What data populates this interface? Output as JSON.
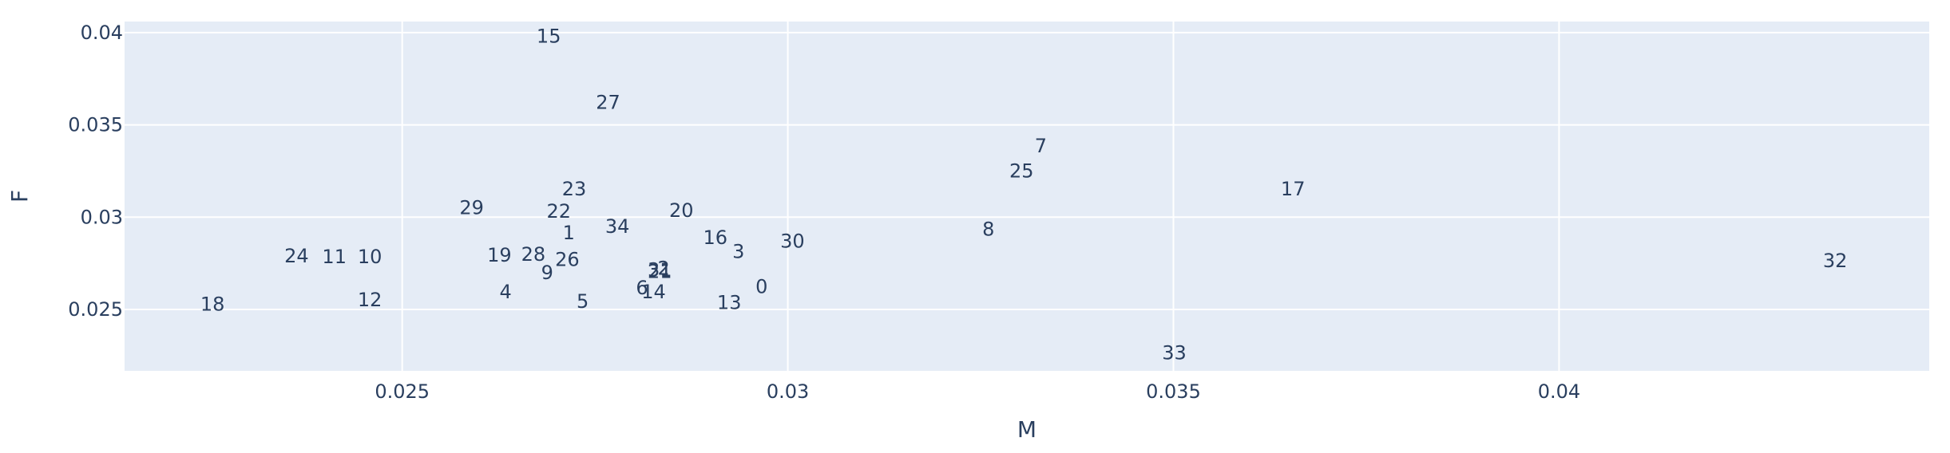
{
  "chart_data": {
    "type": "scatter",
    "mode": "text",
    "xlabel": "M",
    "ylabel": "F",
    "xlim": [
      0.0214,
      0.0448
    ],
    "ylim": [
      0.02167,
      0.0406
    ],
    "grid": true,
    "colors": {
      "plot_bg": "#e5ecf6",
      "grid": "#ffffff",
      "text": "#2a3f5f",
      "paper_bg": "#ffffff"
    },
    "x_ticks": [
      {
        "value": 0.025,
        "label": "0.025"
      },
      {
        "value": 0.03,
        "label": "0.03"
      },
      {
        "value": 0.035,
        "label": "0.035"
      },
      {
        "value": 0.04,
        "label": "0.04"
      }
    ],
    "y_ticks": [
      {
        "value": 0.025,
        "label": "0.025"
      },
      {
        "value": 0.03,
        "label": "0.03"
      },
      {
        "value": 0.035,
        "label": "0.035"
      },
      {
        "value": 0.04,
        "label": "0.04"
      }
    ],
    "points": [
      {
        "label": "0",
        "x": 0.02966,
        "y": 0.02622
      },
      {
        "label": "1",
        "x": 0.02716,
        "y": 0.02915
      },
      {
        "label": "2",
        "x": 0.02839,
        "y": 0.02723
      },
      {
        "label": "3",
        "x": 0.02936,
        "y": 0.02813
      },
      {
        "label": "4",
        "x": 0.02634,
        "y": 0.02594
      },
      {
        "label": "5",
        "x": 0.02734,
        "y": 0.02543
      },
      {
        "label": "6",
        "x": 0.02811,
        "y": 0.02617
      },
      {
        "label": "7",
        "x": 0.03328,
        "y": 0.03386
      },
      {
        "label": "8",
        "x": 0.0326,
        "y": 0.02935
      },
      {
        "label": "9",
        "x": 0.02688,
        "y": 0.02698
      },
      {
        "label": "10",
        "x": 0.02458,
        "y": 0.02784
      },
      {
        "label": "11",
        "x": 0.02412,
        "y": 0.02784
      },
      {
        "label": "12",
        "x": 0.02458,
        "y": 0.02552
      },
      {
        "label": "13",
        "x": 0.02924,
        "y": 0.02536
      },
      {
        "label": "14",
        "x": 0.02826,
        "y": 0.02594
      },
      {
        "label": "15",
        "x": 0.0269,
        "y": 0.03979
      },
      {
        "label": "16",
        "x": 0.02906,
        "y": 0.02889
      },
      {
        "label": "17",
        "x": 0.03655,
        "y": 0.03153
      },
      {
        "label": "18",
        "x": 0.02254,
        "y": 0.02527
      },
      {
        "label": "19",
        "x": 0.02626,
        "y": 0.02794
      },
      {
        "label": "20",
        "x": 0.02862,
        "y": 0.03036
      },
      {
        "label": "21",
        "x": 0.02834,
        "y": 0.02704
      },
      {
        "label": "22",
        "x": 0.02703,
        "y": 0.03031
      },
      {
        "label": "23",
        "x": 0.02723,
        "y": 0.03153
      },
      {
        "label": "24",
        "x": 0.02363,
        "y": 0.02789
      },
      {
        "label": "25",
        "x": 0.03303,
        "y": 0.03249
      },
      {
        "label": "26",
        "x": 0.02714,
        "y": 0.02769
      },
      {
        "label": "27",
        "x": 0.02767,
        "y": 0.03621
      },
      {
        "label": "28",
        "x": 0.0267,
        "y": 0.02799
      },
      {
        "label": "29",
        "x": 0.0259,
        "y": 0.03051
      },
      {
        "label": "30",
        "x": 0.03006,
        "y": 0.02869
      },
      {
        "label": "31",
        "x": 0.02834,
        "y": 0.02713
      },
      {
        "label": "32",
        "x": 0.04358,
        "y": 0.02764
      },
      {
        "label": "33",
        "x": 0.03501,
        "y": 0.02264
      },
      {
        "label": "34",
        "x": 0.02779,
        "y": 0.0295
      }
    ]
  }
}
